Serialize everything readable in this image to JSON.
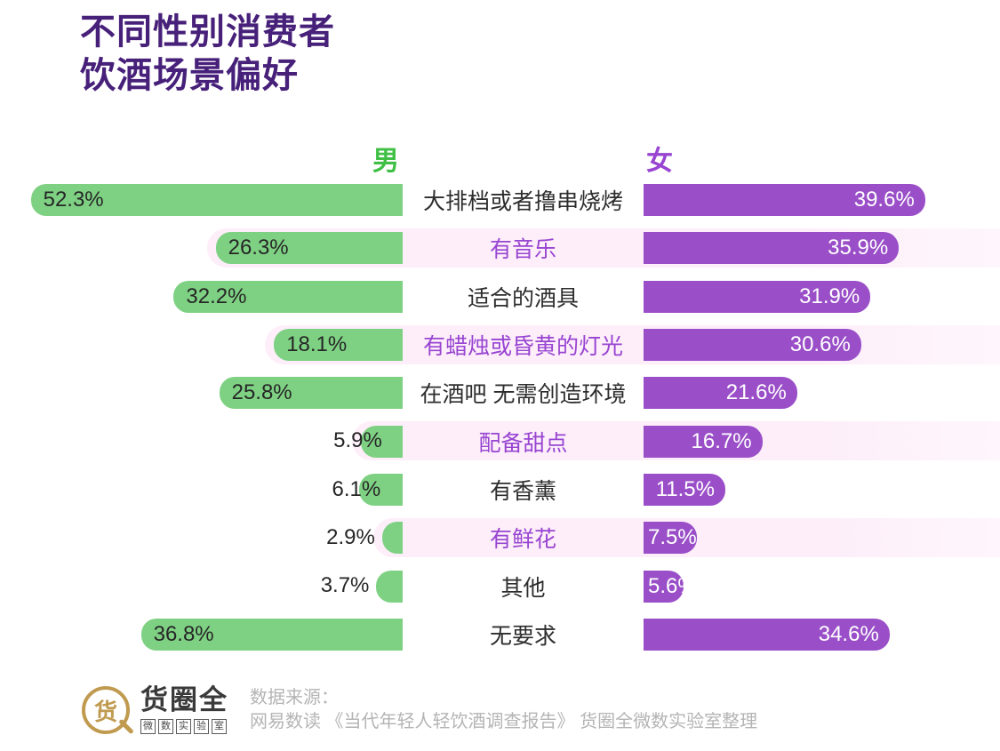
{
  "title": {
    "line1": "不同性别消费者",
    "line2": "饮酒场景偏好"
  },
  "headers": {
    "male": "男",
    "female": "女"
  },
  "chart_data": {
    "type": "bar",
    "layout": "bidirectional-horizontal",
    "value_suffix": "%",
    "pixels_per_percent": 8,
    "categories": [
      "大排档或者撸串烧烤",
      "有音乐",
      "适合的酒具",
      "有蜡烛或昏黄的灯光",
      "在酒吧 无需创造环境",
      "配备甜点",
      "有香薰",
      "有鲜花",
      "其他",
      "无要求"
    ],
    "series": [
      {
        "name": "男",
        "side": "left",
        "color": "#7ed183",
        "values": [
          52.3,
          26.3,
          32.2,
          18.1,
          25.8,
          5.9,
          6.1,
          2.9,
          3.7,
          36.8
        ]
      },
      {
        "name": "女",
        "side": "right",
        "color": "#9a4fc8",
        "values": [
          39.6,
          35.9,
          31.9,
          30.6,
          21.6,
          16.7,
          11.5,
          7.5,
          5.6,
          34.6
        ]
      }
    ],
    "highlighted_rows": [
      1,
      3,
      5,
      7
    ],
    "legend_position": "top-inline"
  },
  "colors": {
    "title": "#47207a",
    "male_header": "#3fbf44",
    "female_header": "#9845d2",
    "male_bar": "#7ed183",
    "female_bar": "#9a4fc8",
    "row_stripe": "#fdeef9",
    "category_text": "#2d2d2d",
    "category_text_alt": "#9845d2",
    "value_on_male": "#262626",
    "value_on_female": "#ffffff",
    "footer_text": "#b4b4b4",
    "logo_gold": "#c09a4f"
  },
  "footer": {
    "logo_char": "货",
    "logo_name": "货圈全",
    "logo_sub_chars": [
      "微",
      "数",
      "实",
      "验",
      "室"
    ],
    "source_label": "数据来源：",
    "source_text": "网易数读 《当代年轻人轻饮酒调查报告》  货圈全微数实验室整理"
  }
}
